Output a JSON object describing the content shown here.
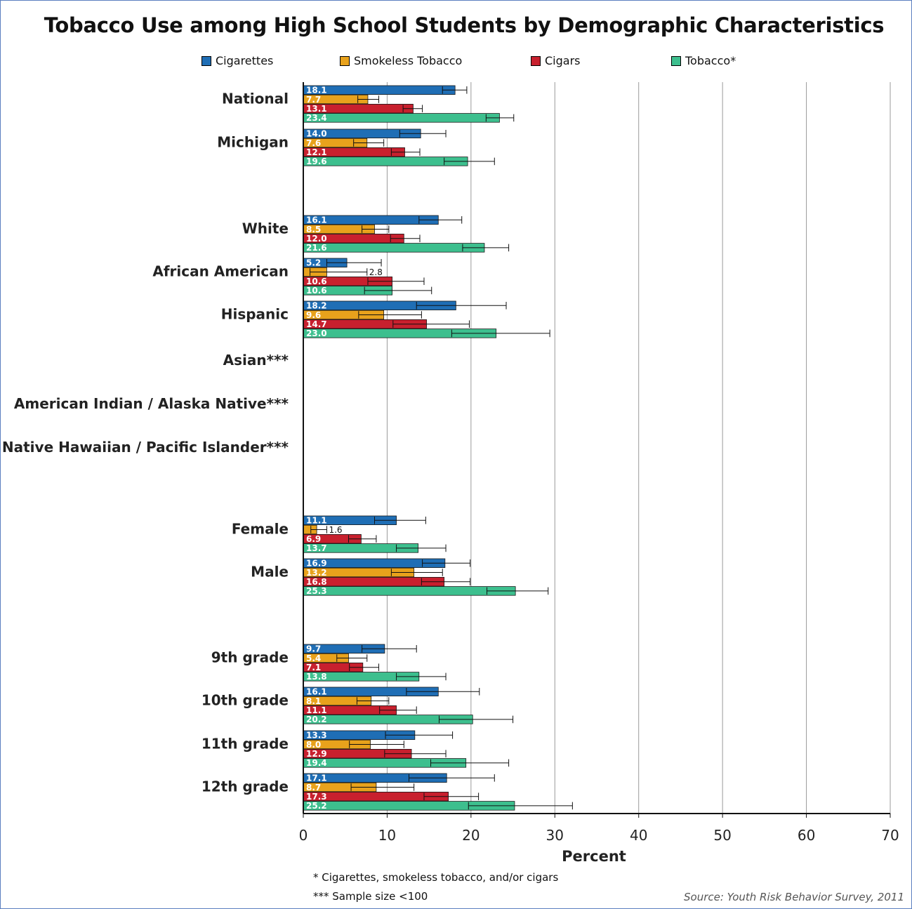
{
  "title": "Tobacco Use among High School Students by Demographic Characteristics",
  "footnotes": [
    "* Cigarettes, smokeless tobacco, and/or cigars",
    "*** Sample size <100"
  ],
  "source": "Source: Youth Risk Behavior Survey, 2011",
  "chart_data": {
    "type": "bar",
    "orientation": "horizontal",
    "xlabel": "Percent",
    "xlim": [
      0,
      70
    ],
    "xticks": [
      0,
      10,
      20,
      30,
      40,
      50,
      60,
      70
    ],
    "grid": true,
    "error_bars": true,
    "legend_position": "top",
    "series": [
      {
        "name": "Cigarettes",
        "color": "#1f6eb5"
      },
      {
        "name": "Smokeless Tobacco",
        "color": "#e8a21c"
      },
      {
        "name": "Cigars",
        "color": "#c8202e"
      },
      {
        "name": "Tobacco*",
        "color": "#3dbf8e"
      }
    ],
    "categories": [
      {
        "label": "National",
        "values": [
          18.1,
          7.7,
          13.1,
          23.4
        ],
        "value_labels": [
          "18.1",
          "7.7",
          "13.1",
          "23.4"
        ],
        "ci": [
          [
            16.6,
            19.5
          ],
          [
            6.5,
            9.0
          ],
          [
            11.9,
            14.2
          ],
          [
            21.8,
            25.1
          ]
        ]
      },
      {
        "label": "Michigan",
        "values": [
          14.0,
          7.6,
          12.1,
          19.6
        ],
        "value_labels": [
          "14.0",
          "7.6",
          "12.1",
          "19.6"
        ],
        "ci": [
          [
            11.5,
            17.0
          ],
          [
            6.0,
            9.6
          ],
          [
            10.5,
            13.9
          ],
          [
            16.8,
            22.8
          ]
        ]
      },
      {
        "label": "White",
        "values": [
          16.1,
          8.5,
          12.0,
          21.6
        ],
        "value_labels": [
          "16.1",
          "8.5",
          "12.0",
          "21.6"
        ],
        "ci": [
          [
            13.8,
            18.9
          ],
          [
            7.0,
            10.2
          ],
          [
            10.4,
            13.9
          ],
          [
            19.0,
            24.5
          ]
        ]
      },
      {
        "label": "African American",
        "values": [
          5.2,
          2.8,
          10.6,
          10.6
        ],
        "value_labels": [
          "5.2",
          "2.8",
          "10.6",
          "10.6"
        ],
        "ci": [
          [
            2.8,
            9.3
          ],
          [
            0.8,
            7.6
          ],
          [
            7.7,
            14.4
          ],
          [
            7.3,
            15.3
          ]
        ]
      },
      {
        "label": "Hispanic",
        "values": [
          18.2,
          9.6,
          14.7,
          23.0
        ],
        "value_labels": [
          "18.2",
          "9.6",
          "14.7",
          "23.0"
        ],
        "ci": [
          [
            13.5,
            24.2
          ],
          [
            6.6,
            14.1
          ],
          [
            10.7,
            19.8
          ],
          [
            17.7,
            29.4
          ]
        ]
      },
      {
        "label": "Asian***",
        "values": [],
        "value_labels": [],
        "ci": []
      },
      {
        "label": "American Indian / Alaska Native***",
        "values": [],
        "value_labels": [],
        "ci": []
      },
      {
        "label": "Native Hawaiian / Pacific Islander***",
        "values": [],
        "value_labels": [],
        "ci": []
      },
      {
        "label": "Female",
        "values": [
          11.1,
          1.6,
          6.9,
          13.7
        ],
        "value_labels": [
          "11.1",
          "1.6",
          "6.9",
          "13.7"
        ],
        "ci": [
          [
            8.5,
            14.6
          ],
          [
            0.9,
            2.8
          ],
          [
            5.4,
            8.7
          ],
          [
            11.1,
            17.0
          ]
        ]
      },
      {
        "label": "Male",
        "values": [
          16.9,
          13.2,
          16.8,
          25.3
        ],
        "value_labels": [
          "16.9",
          "13.2",
          "16.8",
          "25.3"
        ],
        "ci": [
          [
            14.2,
            19.9
          ],
          [
            10.5,
            16.6
          ],
          [
            14.1,
            19.9
          ],
          [
            21.9,
            29.2
          ]
        ]
      },
      {
        "label": "9th grade",
        "values": [
          9.7,
          5.4,
          7.1,
          13.8
        ],
        "value_labels": [
          "9.7",
          "5.4",
          "7.1",
          "13.8"
        ],
        "ci": [
          [
            7.0,
            13.5
          ],
          [
            4.0,
            7.6
          ],
          [
            5.5,
            9.0
          ],
          [
            11.1,
            17.0
          ]
        ]
      },
      {
        "label": "10th grade",
        "values": [
          16.1,
          8.1,
          11.1,
          20.2
        ],
        "value_labels": [
          "16.1",
          "8.1",
          "11.1",
          "20.2"
        ],
        "ci": [
          [
            12.3,
            21.0
          ],
          [
            6.4,
            10.2
          ],
          [
            9.1,
            13.5
          ],
          [
            16.2,
            25.0
          ]
        ]
      },
      {
        "label": "11th grade",
        "values": [
          13.3,
          8.0,
          12.9,
          19.4
        ],
        "value_labels": [
          "13.3",
          "8.0",
          "12.9",
          "19.4"
        ],
        "ci": [
          [
            9.8,
            17.8
          ],
          [
            5.5,
            12.0
          ],
          [
            9.7,
            17.0
          ],
          [
            15.2,
            24.5
          ]
        ]
      },
      {
        "label": "12th grade",
        "values": [
          17.1,
          8.7,
          17.3,
          25.2
        ],
        "value_labels": [
          "17.1",
          "8.7",
          "17.3",
          "25.2"
        ],
        "ci": [
          [
            12.6,
            22.8
          ],
          [
            5.7,
            13.2
          ],
          [
            14.4,
            20.9
          ],
          [
            19.7,
            32.1
          ]
        ]
      }
    ]
  }
}
